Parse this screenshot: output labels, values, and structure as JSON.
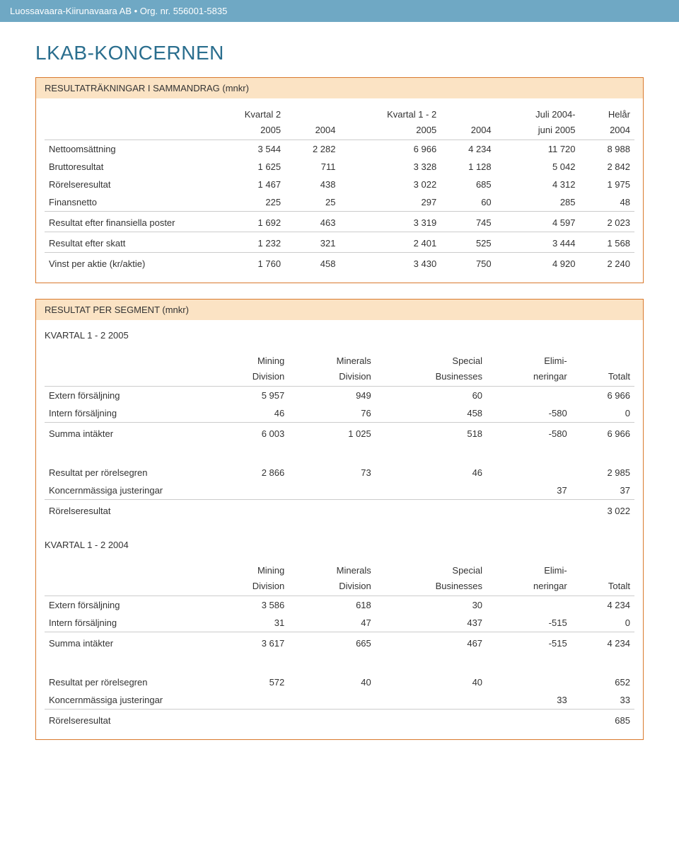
{
  "header": {
    "text": "Luossavaara-Kiirunavaara AB • Org. nr. 556001-5835"
  },
  "page_title": "LKAB-KONCERNEN",
  "theme": {
    "header_bar_bg": "#6fa8c4",
    "title_color": "#2a6e8e",
    "block_border": "#d97a2e",
    "block_title_bg": "#fbe3c4",
    "rule_color": "#cccccc"
  },
  "results_block": {
    "title": "RESULTATRÄKNINGAR I SAMMANDRAG (mnkr)",
    "col_headers_top": [
      "Kvartal 2",
      "",
      "Kvartal 1 - 2",
      "",
      "Juli 2004-",
      "Helår"
    ],
    "col_headers_bot": [
      "2005",
      "2004",
      "2005",
      "2004",
      "juni 2005",
      "2004"
    ],
    "rows": [
      {
        "label": "Nettoomsättning",
        "v": [
          "3 544",
          "2 282",
          "6 966",
          "4 234",
          "11 720",
          "8 988"
        ],
        "rule": false
      },
      {
        "label": "Bruttoresultat",
        "v": [
          "1 625",
          "711",
          "3 328",
          "1 128",
          "5 042",
          "2 842"
        ],
        "rule": false
      },
      {
        "label": "Rörelseresultat",
        "v": [
          "1 467",
          "438",
          "3 022",
          "685",
          "4 312",
          "1 975"
        ],
        "rule": false
      },
      {
        "label": "Finansnetto",
        "v": [
          "225",
          "25",
          "297",
          "60",
          "285",
          "48"
        ],
        "rule": false
      },
      {
        "label": "Resultat efter finansiella poster",
        "v": [
          "1 692",
          "463",
          "3 319",
          "745",
          "4 597",
          "2 023"
        ],
        "rule": true
      },
      {
        "label": "Resultat efter skatt",
        "v": [
          "1 232",
          "321",
          "2 401",
          "525",
          "3 444",
          "1 568"
        ],
        "rule": true
      },
      {
        "label": "Vinst per aktie (kr/aktie)",
        "v": [
          "1 760",
          "458",
          "3 430",
          "750",
          "4 920",
          "2 240"
        ],
        "rule": true
      }
    ]
  },
  "segment_block": {
    "title": "RESULTAT PER SEGMENT (mnkr)",
    "periods": [
      {
        "label": "KVARTAL 1 - 2 2005",
        "col_headers_top": [
          "Mining",
          "Minerals",
          "Special",
          "Elimi-",
          ""
        ],
        "col_headers_bot": [
          "Division",
          "Division",
          "Businesses",
          "neringar",
          "Totalt"
        ],
        "rows": [
          {
            "label": "Extern försäljning",
            "v": [
              "5 957",
              "949",
              "60",
              "",
              "6 966"
            ],
            "rule": false
          },
          {
            "label": "Intern försäljning",
            "v": [
              "46",
              "76",
              "458",
              "-580",
              "0"
            ],
            "rule": false
          },
          {
            "label": "Summa intäkter",
            "v": [
              "6 003",
              "1 025",
              "518",
              "-580",
              "6 966"
            ],
            "rule": true
          }
        ],
        "rows2": [
          {
            "label": "Resultat per rörelsegren",
            "v": [
              "2 866",
              "73",
              "46",
              "",
              "2 985"
            ],
            "rule": false
          },
          {
            "label": "Koncernmässiga justeringar",
            "v": [
              "",
              "",
              "",
              "37",
              "37"
            ],
            "rule": false
          },
          {
            "label": "Rörelseresultat",
            "v": [
              "",
              "",
              "",
              "",
              "3 022"
            ],
            "rule": true
          }
        ]
      },
      {
        "label": "KVARTAL 1 - 2 2004",
        "col_headers_top": [
          "Mining",
          "Minerals",
          "Special",
          "Elimi-",
          ""
        ],
        "col_headers_bot": [
          "Division",
          "Division",
          "Businesses",
          "neringar",
          "Totalt"
        ],
        "rows": [
          {
            "label": "Extern försäljning",
            "v": [
              "3 586",
              "618",
              "30",
              "",
              "4 234"
            ],
            "rule": false
          },
          {
            "label": "Intern försäljning",
            "v": [
              "31",
              "47",
              "437",
              "-515",
              "0"
            ],
            "rule": false
          },
          {
            "label": "Summa intäkter",
            "v": [
              "3 617",
              "665",
              "467",
              "-515",
              "4 234"
            ],
            "rule": true
          }
        ],
        "rows2": [
          {
            "label": "Resultat per rörelsegren",
            "v": [
              "572",
              "40",
              "40",
              "",
              "652"
            ],
            "rule": false
          },
          {
            "label": "Koncernmässiga justeringar",
            "v": [
              "",
              "",
              "",
              "33",
              "33"
            ],
            "rule": false
          },
          {
            "label": "Rörelseresultat",
            "v": [
              "",
              "",
              "",
              "",
              "685"
            ],
            "rule": true
          }
        ]
      }
    ]
  }
}
